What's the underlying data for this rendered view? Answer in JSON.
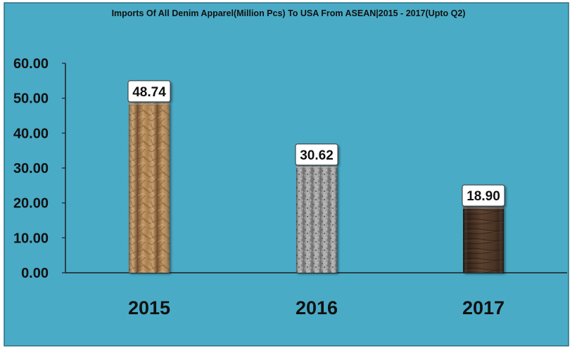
{
  "colors": {
    "background": "#4aabc6",
    "frame": "#2f6f84",
    "axis": "#1f1f1f",
    "label_box_fill": "#ffffff",
    "label_box_stroke": "#333333",
    "text": "#111111"
  },
  "chart_data": {
    "type": "bar",
    "title": "Imports Of All Denim Apparel(Million Pcs) To USA From ASEAN|2015 - 2017(Upto Q2)",
    "xlabel": "",
    "ylabel": "",
    "categories": [
      "2015",
      "2016",
      "2017"
    ],
    "values": [
      48.74,
      30.62,
      18.9
    ],
    "value_labels": [
      "48.74",
      "30.62",
      "18.90"
    ],
    "ylim": [
      0,
      60
    ],
    "yticks": [
      0,
      10,
      20,
      30,
      40,
      50,
      60
    ],
    "ytick_labels": [
      "0.00",
      "10.00",
      "20.00",
      "30.00",
      "40.00",
      "50.00",
      "60.00"
    ],
    "grid": false,
    "legend": "none",
    "bar_textures": [
      "crumpled-paper-brown",
      "granite-gray",
      "dark-wood"
    ],
    "bar_colors": [
      "#a67c4f",
      "#9a9a9a",
      "#4a3426"
    ]
  }
}
